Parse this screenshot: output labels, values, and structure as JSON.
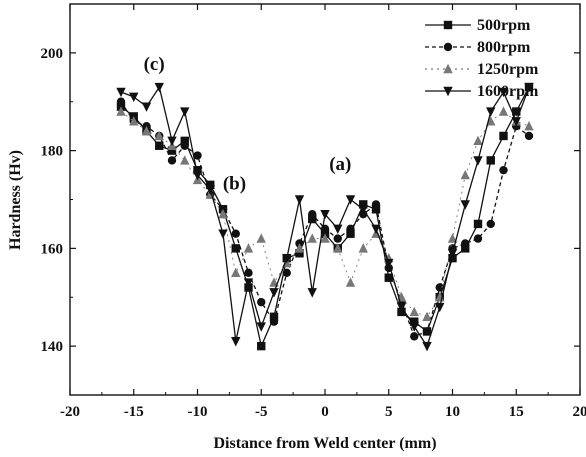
{
  "chart_data": {
    "type": "line",
    "xlabel": "Distance from Weld center (mm)",
    "ylabel": "Hardness (Hv)",
    "xlim": [
      -20,
      20
    ],
    "ylim": [
      130,
      210
    ],
    "x_ticks": [
      "-20",
      "-15",
      "-10",
      "-5",
      "0",
      "5",
      "10",
      "15",
      "20"
    ],
    "y_ticks": [
      "140",
      "160",
      "180",
      "200"
    ],
    "grid": false,
    "legend_position": "top-right",
    "annotations": [
      {
        "text": "(a)",
        "x": 1.2,
        "y": 176
      },
      {
        "text": "(b)",
        "x": -7.1,
        "y": 172
      },
      {
        "text": "(c)",
        "x": -13.4,
        "y": 196.5
      }
    ],
    "series": [
      {
        "name": "500rpm",
        "marker": "square",
        "color": "#111111",
        "x": [
          -16,
          -15,
          -14,
          -13,
          -12,
          -11,
          -10,
          -9,
          -8,
          -7,
          -6,
          -5,
          -4,
          -3,
          -2,
          -1,
          0,
          1,
          2,
          3,
          4,
          5,
          6,
          7,
          8,
          9,
          10,
          11,
          12,
          13,
          14,
          15,
          16
        ],
        "y": [
          189,
          187,
          184,
          181,
          180,
          182,
          176,
          173,
          168,
          160,
          152,
          140,
          146,
          158,
          159,
          166,
          163,
          160,
          163,
          169,
          168,
          154,
          147,
          145,
          143,
          150,
          158,
          160,
          165,
          178,
          183,
          188,
          193
        ]
      },
      {
        "name": "800rpm",
        "marker": "circle",
        "color": "#111111",
        "x": [
          -16,
          -15,
          -14,
          -13,
          -12,
          -11,
          -10,
          -9,
          -8,
          -7,
          -6,
          -5,
          -4,
          -3,
          -2,
          -1,
          0,
          1,
          2,
          3,
          4,
          5,
          6,
          7,
          8,
          9,
          10,
          11,
          12,
          13,
          14,
          15,
          16
        ],
        "y": [
          190,
          186,
          185,
          183,
          178,
          181,
          179,
          171,
          168,
          163,
          155,
          149,
          145,
          155,
          161,
          167,
          164,
          162,
          164,
          167,
          169,
          156,
          149,
          142,
          143,
          152,
          160,
          161,
          162,
          165,
          176,
          185,
          183
        ]
      },
      {
        "name": "1250rpm",
        "marker": "triangle-up",
        "color": "#777777",
        "x": [
          -16,
          -15,
          -14,
          -13,
          -12,
          -11,
          -10,
          -9,
          -8,
          -7,
          -6,
          -5,
          -4,
          -3,
          -2,
          -1,
          0,
          1,
          2,
          3,
          4,
          5,
          6,
          7,
          8,
          9,
          10,
          11,
          12,
          13,
          14,
          15,
          16
        ],
        "y": [
          188,
          186,
          184,
          183,
          181,
          178,
          174,
          171,
          167,
          155,
          160,
          162,
          153,
          157,
          160,
          162,
          162,
          160,
          153,
          160,
          163,
          158,
          150,
          147,
          146,
          150,
          162,
          175,
          182,
          186,
          188,
          186,
          185
        ]
      },
      {
        "name": "1600rpm",
        "marker": "triangle-down",
        "color": "#111111",
        "x": [
          -16,
          -15,
          -14,
          -13,
          -12,
          -11,
          -10,
          -9,
          -8,
          -7,
          -6,
          -5,
          -4,
          -3,
          -2,
          -1,
          0,
          1,
          2,
          3,
          4,
          5,
          6,
          7,
          8,
          9,
          10,
          11,
          12,
          13,
          14,
          15,
          16
        ],
        "y": [
          192,
          191,
          189,
          193,
          182,
          188,
          175,
          172,
          163,
          141,
          153,
          144,
          151,
          158,
          170,
          151,
          167,
          164,
          170,
          168,
          164,
          157,
          148,
          144,
          140,
          148,
          159,
          169,
          178,
          188,
          192,
          186,
          193
        ]
      }
    ]
  }
}
